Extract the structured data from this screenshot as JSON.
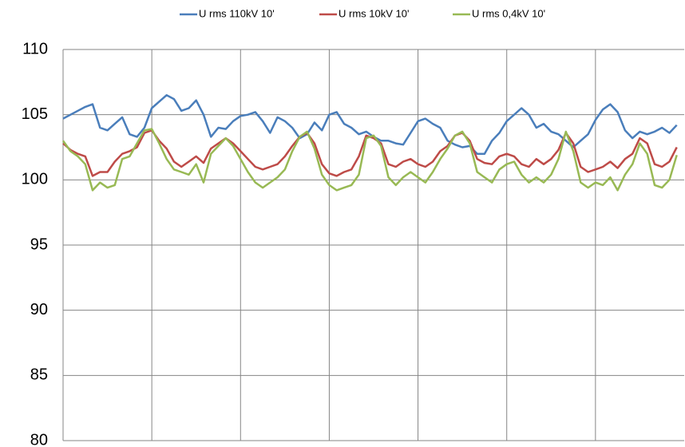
{
  "chart_data": {
    "type": "line",
    "categories": [
      null,
      null,
      null,
      null,
      null,
      null,
      null,
      null,
      null,
      null,
      null,
      null,
      null,
      null,
      null,
      null,
      null,
      null,
      null,
      null,
      null,
      null,
      null,
      null,
      null,
      null,
      null,
      null,
      null,
      null,
      null,
      null,
      null,
      null,
      null,
      null,
      null,
      null,
      null,
      null,
      null,
      null,
      null,
      null,
      null,
      null,
      null,
      null,
      null,
      null,
      null,
      null,
      null,
      null,
      null,
      null,
      null,
      null,
      null,
      null,
      null,
      null,
      null,
      null,
      null,
      null,
      null,
      null,
      null,
      null,
      null,
      null,
      null,
      null,
      null,
      null,
      null,
      null,
      null,
      null,
      null,
      null,
      null,
      null
    ],
    "series": [
      {
        "name": "U rms 110kV 10'",
        "color": "#4a7ebb",
        "values": [
          104.7,
          105.0,
          105.3,
          105.6,
          105.8,
          104.0,
          103.8,
          104.3,
          104.8,
          103.5,
          103.3,
          104.0,
          105.5,
          106.0,
          106.5,
          106.2,
          105.3,
          105.5,
          106.1,
          105.0,
          103.3,
          104.0,
          103.9,
          104.5,
          104.9,
          105.0,
          105.2,
          104.5,
          103.6,
          104.8,
          104.5,
          104.0,
          103.2,
          103.5,
          104.4,
          103.8,
          105.0,
          105.2,
          104.3,
          104.0,
          103.5,
          103.7,
          103.3,
          103.0,
          103.0,
          102.8,
          102.7,
          103.6,
          104.5,
          104.7,
          104.3,
          104.0,
          103.0,
          102.7,
          102.5,
          102.6,
          102.0,
          102.0,
          103.0,
          103.6,
          104.5,
          105.0,
          105.5,
          105.0,
          104.0,
          104.3,
          103.7,
          103.5,
          103.0,
          102.5,
          103.0,
          103.5,
          104.6,
          105.4,
          105.8,
          105.2,
          103.8,
          103.2,
          103.7,
          103.5,
          103.7,
          104.0,
          103.6,
          104.2
        ]
      },
      {
        "name": "U rms 10kV 10'",
        "color": "#be4b48",
        "values": [
          102.8,
          102.3,
          102.0,
          101.8,
          100.3,
          100.6,
          100.6,
          101.4,
          102.0,
          102.2,
          102.5,
          103.6,
          103.8,
          103.0,
          102.4,
          101.4,
          101.0,
          101.4,
          101.8,
          101.3,
          102.4,
          102.8,
          103.2,
          102.8,
          102.2,
          101.6,
          101.0,
          100.8,
          101.0,
          101.2,
          101.8,
          102.6,
          103.3,
          103.6,
          102.8,
          101.2,
          100.5,
          100.3,
          100.6,
          100.8,
          101.8,
          103.4,
          103.2,
          102.8,
          101.2,
          101.0,
          101.4,
          101.6,
          101.2,
          101.0,
          101.4,
          102.2,
          102.6,
          103.4,
          103.6,
          103.0,
          101.6,
          101.3,
          101.2,
          101.8,
          102.0,
          101.8,
          101.2,
          101.0,
          101.6,
          101.2,
          101.6,
          102.3,
          103.6,
          102.8,
          101.0,
          100.6,
          100.8,
          101.0,
          101.4,
          100.9,
          101.6,
          102.0,
          103.2,
          102.8,
          101.2,
          101.0,
          101.4,
          102.5
        ]
      },
      {
        "name": "U rms 0,4kV 10'",
        "color": "#98b954",
        "values": [
          103.0,
          102.2,
          101.8,
          101.2,
          99.2,
          99.8,
          99.4,
          99.6,
          101.6,
          101.8,
          102.8,
          103.8,
          103.9,
          102.8,
          101.6,
          100.8,
          100.6,
          100.4,
          101.2,
          99.8,
          102.0,
          102.6,
          103.2,
          102.6,
          101.6,
          100.6,
          99.8,
          99.4,
          99.8,
          100.2,
          100.8,
          102.2,
          103.3,
          103.7,
          102.4,
          100.4,
          99.6,
          99.2,
          99.4,
          99.6,
          100.4,
          103.2,
          103.4,
          102.6,
          100.2,
          99.6,
          100.2,
          100.6,
          100.2,
          99.8,
          100.6,
          101.6,
          102.4,
          103.4,
          103.7,
          102.8,
          100.6,
          100.2,
          99.8,
          100.8,
          101.2,
          101.4,
          100.4,
          99.8,
          100.2,
          99.8,
          100.4,
          101.6,
          103.7,
          102.2,
          99.8,
          99.4,
          99.8,
          99.6,
          100.2,
          99.2,
          100.4,
          101.2,
          102.8,
          102.0,
          99.6,
          99.4,
          100.0,
          101.9
        ]
      }
    ],
    "ylim": [
      80,
      110
    ],
    "yticks": [
      80,
      85,
      90,
      95,
      100,
      105,
      110
    ],
    "grid": true,
    "legend": "top"
  }
}
